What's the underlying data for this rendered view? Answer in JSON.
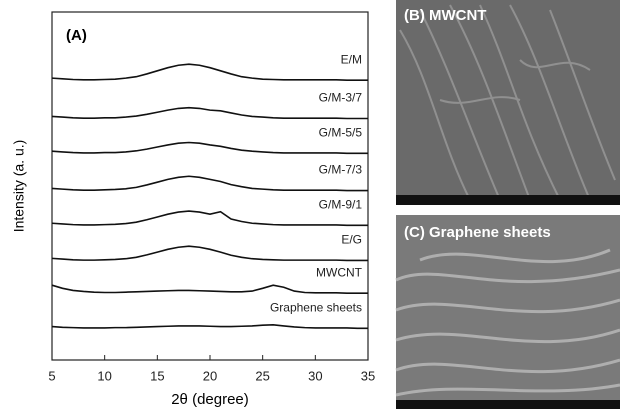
{
  "chart_data": {
    "type": "line",
    "title": "(A)",
    "x_label": "2θ (degree)",
    "y_label": "Intensity (a. u.)",
    "xlim": [
      5,
      35
    ],
    "xticks": [
      5,
      10,
      15,
      20,
      25,
      30,
      35
    ],
    "ylim": [
      0,
      100
    ],
    "x": [
      5,
      6,
      7,
      8,
      9,
      10,
      11,
      12,
      13,
      14,
      15,
      16,
      17,
      18,
      19,
      20,
      21,
      22,
      23,
      24,
      25,
      26,
      27,
      28,
      29,
      30,
      31,
      32,
      33,
      34,
      35
    ],
    "series": [
      {
        "name": "E/M",
        "color": "#111111",
        "values": [
          81.0,
          80.8,
          80.6,
          80.5,
          80.5,
          80.6,
          80.7,
          81.0,
          81.4,
          82.2,
          83.1,
          84.0,
          84.7,
          85.0,
          84.7,
          84.0,
          83.1,
          82.2,
          81.4,
          81.0,
          80.7,
          80.6,
          80.5,
          80.5,
          80.5,
          80.5,
          80.5,
          80.5,
          80.4,
          80.4,
          80.4
        ]
      },
      {
        "name": "G/M-3/7",
        "color": "#111111",
        "values": [
          70.0,
          69.8,
          69.6,
          69.5,
          69.5,
          69.6,
          69.6,
          69.8,
          70.1,
          70.6,
          71.2,
          71.8,
          72.3,
          72.5,
          72.3,
          71.8,
          71.6,
          71.0,
          70.4,
          70.0,
          69.8,
          69.6,
          69.5,
          69.5,
          69.5,
          69.5,
          69.5,
          69.5,
          69.4,
          69.4,
          69.4
        ]
      },
      {
        "name": "G/M-5/5",
        "color": "#111111",
        "values": [
          60.0,
          59.8,
          59.6,
          59.5,
          59.5,
          59.6,
          59.6,
          59.8,
          60.1,
          60.6,
          61.2,
          61.8,
          62.3,
          62.5,
          62.3,
          61.8,
          61.4,
          60.8,
          60.3,
          60.0,
          59.8,
          59.6,
          59.5,
          59.5,
          59.5,
          59.5,
          59.5,
          59.5,
          59.4,
          59.4,
          59.4
        ]
      },
      {
        "name": "G/M-7/3",
        "color": "#111111",
        "values": [
          49.3,
          49.1,
          48.9,
          48.8,
          48.8,
          48.9,
          49.0,
          49.2,
          49.6,
          50.3,
          51.1,
          51.9,
          52.5,
          52.8,
          52.5,
          51.9,
          51.3,
          50.4,
          49.8,
          49.3,
          49.1,
          48.9,
          48.8,
          48.8,
          48.8,
          48.8,
          48.8,
          48.8,
          48.7,
          48.7,
          48.7
        ]
      },
      {
        "name": "G/M-9/1",
        "color": "#111111",
        "values": [
          39.3,
          39.1,
          38.9,
          38.8,
          38.8,
          38.9,
          39.0,
          39.2,
          39.6,
          40.3,
          41.1,
          41.9,
          42.5,
          42.8,
          42.5,
          41.9,
          42.6,
          40.5,
          39.8,
          39.3,
          39.1,
          38.9,
          38.8,
          38.8,
          38.8,
          38.8,
          38.8,
          38.8,
          38.7,
          38.7,
          38.7
        ]
      },
      {
        "name": "E/G",
        "color": "#111111",
        "values": [
          29.2,
          29.0,
          28.8,
          28.7,
          28.7,
          28.8,
          28.9,
          29.1,
          29.5,
          30.2,
          31.0,
          31.8,
          32.4,
          32.7,
          32.4,
          31.8,
          31.0,
          30.1,
          29.5,
          29.1,
          28.9,
          28.8,
          28.7,
          28.7,
          28.7,
          28.7,
          28.7,
          28.7,
          28.6,
          28.6,
          28.6
        ]
      },
      {
        "name": "MWCNT",
        "color": "#111111",
        "values": [
          21.5,
          20.6,
          20.0,
          19.7,
          19.5,
          19.4,
          19.4,
          19.5,
          19.6,
          19.7,
          19.8,
          19.9,
          20.0,
          20.0,
          19.9,
          19.8,
          19.7,
          19.6,
          19.6,
          19.8,
          20.6,
          21.5,
          20.9,
          19.8,
          19.4,
          19.3,
          19.3,
          19.3,
          19.2,
          19.2,
          19.2
        ]
      },
      {
        "name": "Graphene sheets",
        "color": "#111111",
        "values": [
          9.6,
          9.4,
          9.3,
          9.2,
          9.2,
          9.2,
          9.3,
          9.3,
          9.4,
          9.5,
          9.6,
          9.7,
          9.8,
          9.8,
          9.8,
          9.7,
          9.6,
          9.6,
          9.7,
          9.8,
          10.0,
          10.1,
          9.8,
          9.5,
          9.3,
          9.2,
          9.2,
          9.2,
          9.2,
          9.1,
          9.1
        ]
      }
    ]
  },
  "images": [
    {
      "label": "(B) MWCNT"
    },
    {
      "label": "(C) Graphene sheets"
    }
  ]
}
